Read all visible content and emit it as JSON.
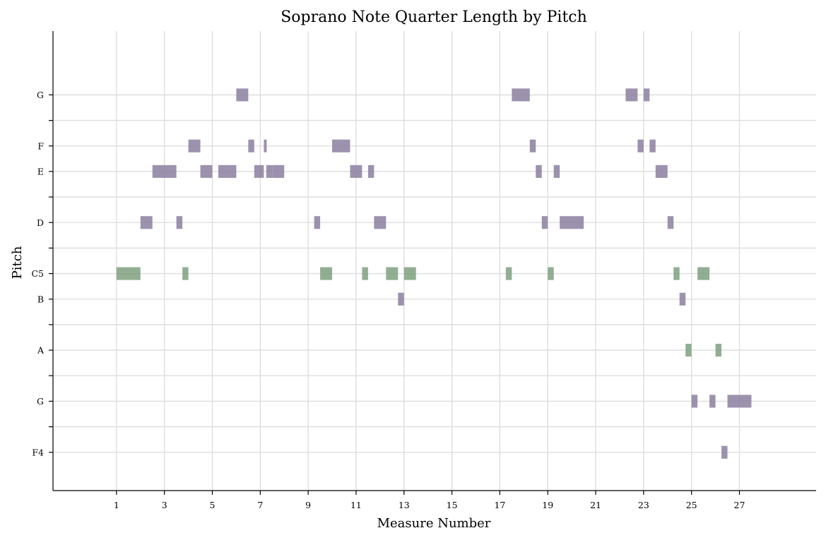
{
  "chart_data": {
    "type": "piano-roll",
    "title": "Soprano Note Quarter Length by Pitch",
    "xlabel": "Measure Number",
    "ylabel": "Pitch",
    "grid": true,
    "xlim": [
      -1.65,
      30.2
    ],
    "x_ticks": [
      1,
      3,
      5,
      7,
      9,
      11,
      13,
      15,
      17,
      19,
      21,
      23,
      25,
      27
    ],
    "ylim": [
      63.5,
      81.5
    ],
    "y_ticks": [
      {
        "midi": 65,
        "label": "F4"
      },
      {
        "midi": 66,
        "label": ""
      },
      {
        "midi": 67,
        "label": "G"
      },
      {
        "midi": 68,
        "label": ""
      },
      {
        "midi": 69,
        "label": "A"
      },
      {
        "midi": 70,
        "label": ""
      },
      {
        "midi": 71,
        "label": "B"
      },
      {
        "midi": 72,
        "label": "C5"
      },
      {
        "midi": 73,
        "label": ""
      },
      {
        "midi": 74,
        "label": "D"
      },
      {
        "midi": 75,
        "label": ""
      },
      {
        "midi": 76,
        "label": "E"
      },
      {
        "midi": 77,
        "label": "F"
      },
      {
        "midi": 78,
        "label": ""
      },
      {
        "midi": 79,
        "label": "G"
      }
    ],
    "colors": {
      "natural": "#8c7fa0",
      "c_and_a": "#7fa07f"
    },
    "notes": [
      {
        "pitch": 72,
        "start": 1.0,
        "length": 1.0,
        "color": "c_and_a"
      },
      {
        "pitch": 74,
        "start": 2.0,
        "length": 0.5,
        "color": "natural"
      },
      {
        "pitch": 76,
        "start": 2.5,
        "length": 1.0,
        "color": "natural"
      },
      {
        "pitch": 74,
        "start": 3.5,
        "length": 0.25,
        "color": "natural"
      },
      {
        "pitch": 72,
        "start": 3.75,
        "length": 0.25,
        "color": "c_and_a"
      },
      {
        "pitch": 77,
        "start": 4.0,
        "length": 0.5,
        "color": "natural"
      },
      {
        "pitch": 76,
        "start": 4.5,
        "length": 0.5,
        "color": "natural"
      },
      {
        "pitch": 76,
        "start": 5.25,
        "length": 0.75,
        "color": "natural"
      },
      {
        "pitch": 79,
        "start": 6.0,
        "length": 0.5,
        "color": "natural"
      },
      {
        "pitch": 77,
        "start": 6.5,
        "length": 0.25,
        "color": "natural"
      },
      {
        "pitch": 76,
        "start": 6.75,
        "length": 0.4,
        "color": "natural"
      },
      {
        "pitch": 77,
        "start": 7.15,
        "length": 0.12,
        "color": "natural"
      },
      {
        "pitch": 76,
        "start": 7.25,
        "length": 0.25,
        "color": "natural"
      },
      {
        "pitch": 76,
        "start": 7.5,
        "length": 0.5,
        "color": "natural"
      },
      {
        "pitch": 74,
        "start": 9.25,
        "length": 0.25,
        "color": "natural"
      },
      {
        "pitch": 72,
        "start": 9.5,
        "length": 0.5,
        "color": "c_and_a"
      },
      {
        "pitch": 77,
        "start": 10.0,
        "length": 0.75,
        "color": "natural"
      },
      {
        "pitch": 76,
        "start": 10.75,
        "length": 0.5,
        "color": "natural"
      },
      {
        "pitch": 72,
        "start": 11.25,
        "length": 0.25,
        "color": "c_and_a"
      },
      {
        "pitch": 76,
        "start": 11.5,
        "length": 0.25,
        "color": "natural"
      },
      {
        "pitch": 74,
        "start": 11.75,
        "length": 0.5,
        "color": "natural"
      },
      {
        "pitch": 72,
        "start": 12.25,
        "length": 0.5,
        "color": "c_and_a"
      },
      {
        "pitch": 71,
        "start": 12.75,
        "length": 0.25,
        "color": "natural"
      },
      {
        "pitch": 72,
        "start": 13.0,
        "length": 0.5,
        "color": "c_and_a"
      },
      {
        "pitch": 72,
        "start": 17.25,
        "length": 0.25,
        "color": "c_and_a"
      },
      {
        "pitch": 79,
        "start": 17.5,
        "length": 0.75,
        "color": "natural"
      },
      {
        "pitch": 77,
        "start": 18.25,
        "length": 0.25,
        "color": "natural"
      },
      {
        "pitch": 76,
        "start": 18.5,
        "length": 0.25,
        "color": "natural"
      },
      {
        "pitch": 74,
        "start": 18.75,
        "length": 0.25,
        "color": "natural"
      },
      {
        "pitch": 72,
        "start": 19.0,
        "length": 0.25,
        "color": "c_and_a"
      },
      {
        "pitch": 76,
        "start": 19.25,
        "length": 0.25,
        "color": "natural"
      },
      {
        "pitch": 74,
        "start": 19.5,
        "length": 1.0,
        "color": "natural"
      },
      {
        "pitch": 79,
        "start": 22.25,
        "length": 0.5,
        "color": "natural"
      },
      {
        "pitch": 77,
        "start": 22.75,
        "length": 0.25,
        "color": "natural"
      },
      {
        "pitch": 79,
        "start": 23.0,
        "length": 0.25,
        "color": "natural"
      },
      {
        "pitch": 77,
        "start": 23.25,
        "length": 0.25,
        "color": "natural"
      },
      {
        "pitch": 76,
        "start": 23.5,
        "length": 0.5,
        "color": "natural"
      },
      {
        "pitch": 74,
        "start": 24.0,
        "length": 0.25,
        "color": "natural"
      },
      {
        "pitch": 72,
        "start": 24.25,
        "length": 0.25,
        "color": "c_and_a"
      },
      {
        "pitch": 71,
        "start": 24.5,
        "length": 0.25,
        "color": "natural"
      },
      {
        "pitch": 69,
        "start": 24.75,
        "length": 0.25,
        "color": "c_and_a"
      },
      {
        "pitch": 67,
        "start": 25.0,
        "length": 0.25,
        "color": "natural"
      },
      {
        "pitch": 72,
        "start": 25.25,
        "length": 0.5,
        "color": "c_and_a"
      },
      {
        "pitch": 67,
        "start": 25.75,
        "length": 0.25,
        "color": "natural"
      },
      {
        "pitch": 69,
        "start": 26.0,
        "length": 0.25,
        "color": "c_and_a"
      },
      {
        "pitch": 65,
        "start": 26.25,
        "length": 0.25,
        "color": "natural"
      },
      {
        "pitch": 67,
        "start": 26.5,
        "length": 1.0,
        "color": "natural"
      }
    ]
  }
}
